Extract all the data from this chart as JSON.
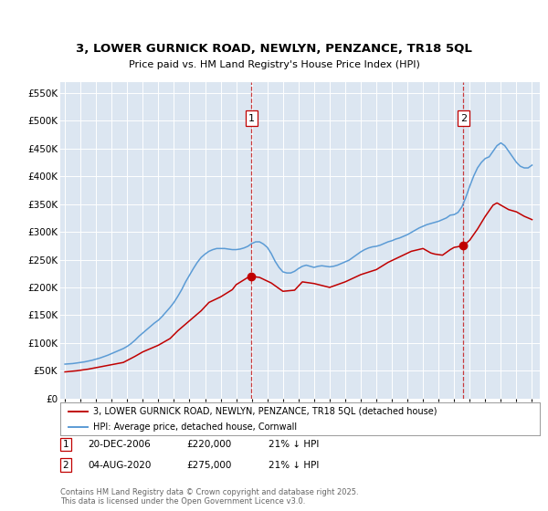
{
  "title": "3, LOWER GURNICK ROAD, NEWLYN, PENZANCE, TR18 5QL",
  "subtitle": "Price paid vs. HM Land Registry's House Price Index (HPI)",
  "ylim": [
    0,
    570000
  ],
  "xlim_start": 1994.7,
  "xlim_end": 2025.5,
  "purchase1_date": 2006.97,
  "purchase1_price": 220000,
  "purchase2_date": 2020.59,
  "purchase2_price": 275000,
  "hpi_color": "#5b9bd5",
  "price_color": "#c00000",
  "bg_color": "#dce6f1",
  "legend_label1": "3, LOWER GURNICK ROAD, NEWLYN, PENZANCE, TR18 5QL (detached house)",
  "legend_label2": "HPI: Average price, detached house, Cornwall",
  "annotation1_label": "1",
  "annotation1_date_str": "20-DEC-2006",
  "annotation1_price_str": "£220,000",
  "annotation1_hpi_str": "21% ↓ HPI",
  "annotation2_label": "2",
  "annotation2_date_str": "04-AUG-2020",
  "annotation2_price_str": "£275,000",
  "annotation2_hpi_str": "21% ↓ HPI",
  "footer": "Contains HM Land Registry data © Crown copyright and database right 2025.\nThis data is licensed under the Open Government Licence v3.0.",
  "hpi_data_x": [
    1995.0,
    1995.25,
    1995.5,
    1995.75,
    1996.0,
    1996.25,
    1996.5,
    1996.75,
    1997.0,
    1997.25,
    1997.5,
    1997.75,
    1998.0,
    1998.25,
    1998.5,
    1998.75,
    1999.0,
    1999.25,
    1999.5,
    1999.75,
    2000.0,
    2000.25,
    2000.5,
    2000.75,
    2001.0,
    2001.25,
    2001.5,
    2001.75,
    2002.0,
    2002.25,
    2002.5,
    2002.75,
    2003.0,
    2003.25,
    2003.5,
    2003.75,
    2004.0,
    2004.25,
    2004.5,
    2004.75,
    2005.0,
    2005.25,
    2005.5,
    2005.75,
    2006.0,
    2006.25,
    2006.5,
    2006.75,
    2007.0,
    2007.25,
    2007.5,
    2007.75,
    2008.0,
    2008.25,
    2008.5,
    2008.75,
    2009.0,
    2009.25,
    2009.5,
    2009.75,
    2010.0,
    2010.25,
    2010.5,
    2010.75,
    2011.0,
    2011.25,
    2011.5,
    2011.75,
    2012.0,
    2012.25,
    2012.5,
    2012.75,
    2013.0,
    2013.25,
    2013.5,
    2013.75,
    2014.0,
    2014.25,
    2014.5,
    2014.75,
    2015.0,
    2015.25,
    2015.5,
    2015.75,
    2016.0,
    2016.25,
    2016.5,
    2016.75,
    2017.0,
    2017.25,
    2017.5,
    2017.75,
    2018.0,
    2018.25,
    2018.5,
    2018.75,
    2019.0,
    2019.25,
    2019.5,
    2019.75,
    2020.0,
    2020.25,
    2020.5,
    2020.75,
    2021.0,
    2021.25,
    2021.5,
    2021.75,
    2022.0,
    2022.25,
    2022.5,
    2022.75,
    2023.0,
    2023.25,
    2023.5,
    2023.75,
    2024.0,
    2024.25,
    2024.5,
    2024.75,
    2025.0
  ],
  "hpi_data_y": [
    62000,
    62500,
    63000,
    64000,
    65000,
    66000,
    67500,
    69000,
    71000,
    73000,
    75500,
    78000,
    81000,
    84000,
    87000,
    90000,
    94000,
    99000,
    105000,
    112000,
    118000,
    124000,
    130000,
    136000,
    141000,
    148000,
    156000,
    164000,
    173000,
    184000,
    196000,
    210000,
    222000,
    234000,
    245000,
    254000,
    260000,
    265000,
    268000,
    270000,
    270000,
    270000,
    269000,
    268000,
    268000,
    269000,
    271000,
    274000,
    279000,
    282000,
    282000,
    278000,
    272000,
    261000,
    247000,
    236000,
    228000,
    226000,
    226000,
    229000,
    234000,
    238000,
    240000,
    238000,
    236000,
    238000,
    239000,
    238000,
    237000,
    238000,
    240000,
    243000,
    246000,
    249000,
    254000,
    259000,
    264000,
    268000,
    271000,
    273000,
    274000,
    276000,
    279000,
    282000,
    284000,
    287000,
    289000,
    292000,
    295000,
    299000,
    303000,
    307000,
    310000,
    313000,
    315000,
    317000,
    319000,
    322000,
    325000,
    330000,
    331000,
    335000,
    345000,
    362000,
    382000,
    400000,
    415000,
    425000,
    432000,
    435000,
    445000,
    455000,
    460000,
    455000,
    445000,
    435000,
    425000,
    418000,
    415000,
    415000,
    420000
  ],
  "price_data_x": [
    1995.0,
    1995.75,
    1996.5,
    1997.25,
    1998.0,
    1998.75,
    1999.5,
    2000.0,
    2001.0,
    2001.75,
    2002.25,
    2003.0,
    2003.75,
    2004.25,
    2005.0,
    2005.75,
    2006.0,
    2006.75,
    2006.97,
    2007.5,
    2008.25,
    2009.0,
    2009.75,
    2010.25,
    2011.0,
    2012.0,
    2013.0,
    2014.0,
    2015.0,
    2015.75,
    2016.5,
    2017.25,
    2018.0,
    2018.5,
    2018.75,
    2019.25,
    2019.75,
    2020.0,
    2020.59,
    2021.0,
    2021.5,
    2022.0,
    2022.5,
    2022.75,
    2023.0,
    2023.5,
    2024.0,
    2024.5,
    2025.0
  ],
  "price_data_y": [
    48000,
    50000,
    53000,
    57000,
    61000,
    65000,
    76000,
    84000,
    96000,
    108000,
    122000,
    140000,
    158000,
    173000,
    183000,
    196000,
    205000,
    218000,
    220000,
    218000,
    208000,
    193000,
    195000,
    210000,
    207000,
    200000,
    210000,
    223000,
    232000,
    245000,
    255000,
    265000,
    270000,
    262000,
    260000,
    258000,
    268000,
    272000,
    275000,
    285000,
    305000,
    328000,
    348000,
    352000,
    348000,
    340000,
    336000,
    328000,
    322000
  ]
}
